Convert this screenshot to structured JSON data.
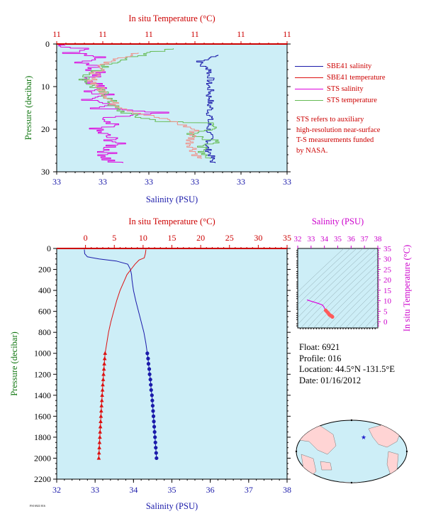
{
  "colors": {
    "panel_bg": "#cdeef7",
    "salinity_blue": "#1a1aaa",
    "temperature_red": "#dd1111",
    "sts_salinity_magenta": "#dd00dd",
    "sts_temperature_green": "#66bb55",
    "sts_temp_pink": "#f09088",
    "axis_red": "#cc0000",
    "axis_blue": "#1a1aaa",
    "axis_green": "#117711",
    "axis_magenta": "#cc00cc",
    "map_land": "#ffd4d4",
    "map_ocean": "#cdeef7"
  },
  "legend": {
    "items": [
      {
        "label": "SBE41 salinity",
        "color": "#1a1aaa"
      },
      {
        "label": "SBE41 temperature",
        "color": "#dd1111"
      },
      {
        "label": "STS salinity",
        "color": "#dd00dd"
      },
      {
        "label": "STS temperature",
        "color": "#66bb55"
      }
    ]
  },
  "note": {
    "lines": [
      "STS refers to auxiliary",
      "high-resolution near-surface",
      "T-S measurements funded",
      "by NASA."
    ]
  },
  "info": {
    "float": "Float:  6921",
    "profile": "Profile:  016",
    "location": "Location:  44.5°N  -131.5°E",
    "date": "Date:  01/16/2012"
  },
  "credit": "FSI 6921/016",
  "chart_data": [
    {
      "type": "line",
      "panel": "near-surface profile",
      "top_axis_label": "In situ Temperature (°C)",
      "top_tick_labels": [
        "11",
        "11",
        "11",
        "11",
        "11",
        "11"
      ],
      "bottom_axis_label": "Salinity (PSU)",
      "bottom_tick_labels": [
        "33",
        "33",
        "33",
        "33",
        "33",
        "33"
      ],
      "ylabel": "Pressure (decibar)",
      "y_ticks": [
        0,
        10,
        20,
        30
      ],
      "ylim": [
        30,
        0
      ],
      "series": [
        {
          "name": "SBE41 salinity",
          "axis": "bottom",
          "x_fraction": [
            0.7,
            0.66,
            0.62,
            0.63,
            0.67,
            0.66,
            0.67,
            0.66,
            0.66,
            0.67,
            0.66,
            0.67,
            0.66,
            0.67,
            0.66,
            0.67,
            0.66,
            0.66,
            0.66,
            0.66,
            0.67,
            0.65,
            0.67,
            0.68
          ],
          "pressure": [
            2.5,
            3.5,
            4,
            5,
            6,
            7,
            8,
            9,
            10,
            11,
            12,
            13,
            14,
            15,
            16,
            17,
            18,
            19,
            20,
            21,
            22,
            24,
            26,
            28
          ]
        },
        {
          "name": "STS salinity",
          "axis": "bottom",
          "x_fraction": [
            0.0,
            0.12,
            0.05,
            0.25,
            0.08,
            0.2,
            0.15,
            0.22,
            0.14,
            0.17,
            0.19,
            0.14,
            0.24,
            0.15,
            0.23,
            0.18,
            0.45,
            0.22,
            0.18,
            0.24,
            0.16,
            0.2,
            0.26,
            0.22,
            0.22,
            0.26
          ],
          "pressure": [
            0,
            1,
            2,
            3,
            4,
            5,
            6,
            7,
            8,
            9,
            10,
            11,
            12,
            13,
            14,
            15,
            16,
            17,
            18,
            19,
            20,
            21,
            23,
            25,
            27,
            28
          ]
        },
        {
          "name": "STS temperature",
          "axis": "top",
          "x_fraction": [
            0.5,
            0.4,
            0.33,
            0.28,
            0.22,
            0.18,
            0.12,
            0.16,
            0.22,
            0.24,
            0.25,
            0.3,
            0.35,
            0.45,
            0.66,
            0.7,
            0.55,
            0.72,
            0.62,
            0.67
          ],
          "pressure": [
            1,
            2,
            3,
            4,
            5,
            6,
            8,
            10,
            12,
            14,
            15,
            16,
            17,
            18,
            18.5,
            20,
            21,
            23,
            24,
            27
          ]
        },
        {
          "name": "SBE41 temperature",
          "axis": "top",
          "x_fraction": [
            0.35,
            0.3,
            0.24,
            0.2,
            0.15,
            0.18,
            0.22,
            0.25,
            0.35,
            0.5,
            0.6,
            0.58,
            0.62
          ],
          "pressure": [
            2,
            3,
            4,
            5,
            8,
            10,
            12,
            14,
            16,
            18,
            20,
            23,
            27
          ]
        }
      ]
    },
    {
      "type": "line",
      "panel": "full profile",
      "top_axis_label": "In situ Temperature (°C)",
      "bottom_axis_label": "Salinity (PSU)",
      "ylabel": "Pressure (decibar)",
      "temperature_axis": {
        "min": -5,
        "max": 35,
        "ticks": [
          0,
          5,
          10,
          15,
          20,
          25,
          30,
          35
        ]
      },
      "salinity_axis": {
        "min": 32,
        "max": 38,
        "ticks": [
          32,
          33,
          34,
          35,
          36,
          37,
          38
        ]
      },
      "pressure_axis": {
        "min": 0,
        "max": 2200,
        "ticks": [
          0,
          200,
          400,
          600,
          800,
          1000,
          1200,
          1400,
          1600,
          1800,
          2000,
          2200
        ]
      },
      "series": [
        {
          "name": "SBE41 salinity",
          "pressure": [
            10,
            50,
            80,
            100,
            120,
            150,
            200,
            250,
            300,
            400,
            500,
            600,
            700,
            800,
            900,
            1000
          ],
          "salinity": [
            32.72,
            32.73,
            32.8,
            33.1,
            33.55,
            33.85,
            33.92,
            33.95,
            33.96,
            34.0,
            34.06,
            34.13,
            34.2,
            34.27,
            34.32,
            34.36
          ]
        },
        {
          "name": "SBE41 temperature",
          "pressure": [
            10,
            50,
            90,
            110,
            150,
            200,
            250,
            300,
            400,
            500,
            600,
            700,
            800,
            900,
            1000
          ],
          "temperature": [
            10.5,
            10.4,
            10.2,
            9.3,
            8.6,
            7.9,
            7.2,
            6.8,
            6.0,
            5.4,
            4.9,
            4.4,
            4.0,
            3.7,
            3.4
          ]
        },
        {
          "name": "SBE41 salinity (sampled)",
          "pressure": [
            1000,
            1050,
            1100,
            1150,
            1200,
            1250,
            1300,
            1350,
            1400,
            1450,
            1500,
            1550,
            1600,
            1650,
            1700,
            1750,
            1800,
            1850,
            1900,
            1950,
            2000
          ],
          "salinity": [
            34.36,
            34.38,
            34.39,
            34.41,
            34.42,
            34.44,
            34.45,
            34.46,
            34.48,
            34.49,
            34.5,
            34.51,
            34.52,
            34.53,
            34.54,
            34.55,
            34.56,
            34.57,
            34.58,
            34.59,
            34.6
          ]
        },
        {
          "name": "SBE41 temperature (sampled)",
          "pressure": [
            1000,
            1050,
            1100,
            1150,
            1200,
            1250,
            1300,
            1350,
            1400,
            1450,
            1500,
            1550,
            1600,
            1650,
            1700,
            1750,
            1800,
            1850,
            1900,
            1950,
            2000
          ],
          "temperature": [
            3.4,
            3.33,
            3.26,
            3.2,
            3.13,
            3.07,
            3.0,
            2.95,
            2.89,
            2.84,
            2.78,
            2.73,
            2.68,
            2.63,
            2.58,
            2.53,
            2.49,
            2.44,
            2.4,
            2.35,
            2.31
          ]
        }
      ]
    },
    {
      "type": "scatter",
      "panel": "T-S diagram",
      "top_axis_label": "Salinity (PSU)",
      "right_axis_label": "In situ Temperature (°C)",
      "salinity_axis": {
        "min": 32,
        "max": 38,
        "ticks": [
          32,
          33,
          34,
          35,
          36,
          37,
          38
        ]
      },
      "temperature_axis": {
        "min": -3,
        "max": 35,
        "ticks": [
          0,
          5,
          10,
          15,
          20,
          25,
          30,
          35
        ]
      },
      "series": [
        {
          "name": "T-S curve",
          "salinity": [
            32.7,
            32.75,
            33.0,
            33.5,
            33.85,
            33.95,
            34.0,
            34.05,
            34.1,
            34.2,
            34.3,
            34.36,
            34.42,
            34.48,
            34.53,
            34.58,
            34.6
          ],
          "temperature": [
            10.5,
            10.3,
            9.8,
            8.8,
            8.0,
            7.2,
            6.5,
            6.0,
            5.4,
            4.7,
            4.0,
            3.4,
            3.1,
            2.9,
            2.7,
            2.45,
            2.3
          ]
        }
      ]
    }
  ]
}
